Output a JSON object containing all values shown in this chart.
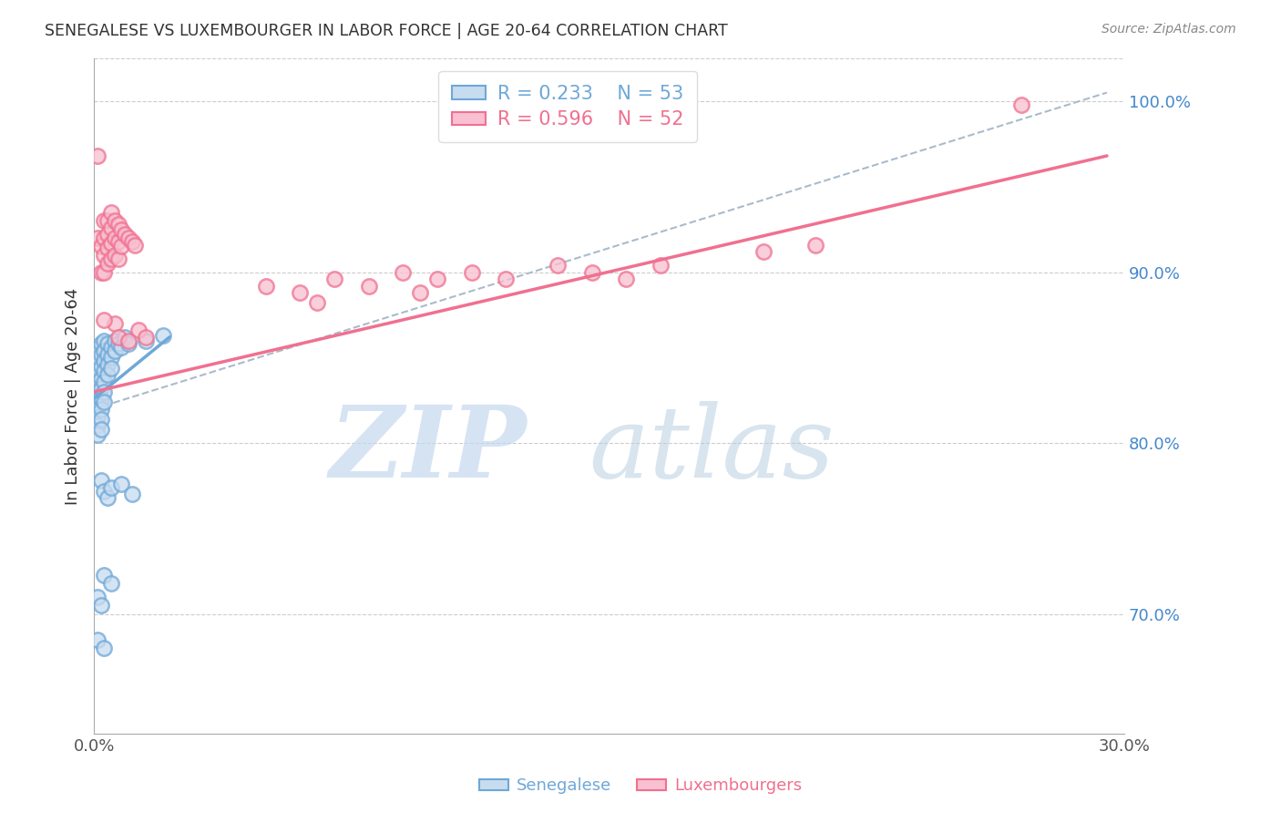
{
  "title": "SENEGALESE VS LUXEMBOURGER IN LABOR FORCE | AGE 20-64 CORRELATION CHART",
  "source": "Source: ZipAtlas.com",
  "ylabel": "In Labor Force | Age 20-64",
  "xlim": [
    0.0,
    0.3
  ],
  "ylim": [
    0.63,
    1.025
  ],
  "xtick_left_label": "0.0%",
  "xtick_right_label": "30.0%",
  "yticks_right": [
    0.7,
    0.8,
    0.9,
    1.0
  ],
  "yticklabels_right": [
    "70.0%",
    "80.0%",
    "90.0%",
    "100.0%"
  ],
  "grid_color": "#cccccc",
  "background_color": "#ffffff",
  "blue_color": "#6ea8d8",
  "pink_color": "#f07090",
  "blue_scatter": [
    [
      0.001,
      0.855
    ],
    [
      0.001,
      0.848
    ],
    [
      0.001,
      0.842
    ],
    [
      0.001,
      0.836
    ],
    [
      0.001,
      0.83
    ],
    [
      0.001,
      0.825
    ],
    [
      0.001,
      0.82
    ],
    [
      0.001,
      0.815
    ],
    [
      0.001,
      0.81
    ],
    [
      0.001,
      0.805
    ],
    [
      0.002,
      0.858
    ],
    [
      0.002,
      0.852
    ],
    [
      0.002,
      0.845
    ],
    [
      0.002,
      0.838
    ],
    [
      0.002,
      0.832
    ],
    [
      0.002,
      0.826
    ],
    [
      0.002,
      0.82
    ],
    [
      0.002,
      0.814
    ],
    [
      0.002,
      0.808
    ],
    [
      0.003,
      0.86
    ],
    [
      0.003,
      0.854
    ],
    [
      0.003,
      0.848
    ],
    [
      0.003,
      0.842
    ],
    [
      0.003,
      0.836
    ],
    [
      0.003,
      0.83
    ],
    [
      0.003,
      0.824
    ],
    [
      0.004,
      0.858
    ],
    [
      0.004,
      0.852
    ],
    [
      0.004,
      0.846
    ],
    [
      0.004,
      0.84
    ],
    [
      0.005,
      0.856
    ],
    [
      0.005,
      0.85
    ],
    [
      0.005,
      0.844
    ],
    [
      0.006,
      0.86
    ],
    [
      0.006,
      0.854
    ],
    [
      0.007,
      0.858
    ],
    [
      0.008,
      0.856
    ],
    [
      0.009,
      0.862
    ],
    [
      0.01,
      0.858
    ],
    [
      0.002,
      0.778
    ],
    [
      0.003,
      0.772
    ],
    [
      0.004,
      0.768
    ],
    [
      0.005,
      0.774
    ],
    [
      0.008,
      0.776
    ],
    [
      0.011,
      0.77
    ],
    [
      0.003,
      0.723
    ],
    [
      0.005,
      0.718
    ],
    [
      0.001,
      0.71
    ],
    [
      0.002,
      0.705
    ],
    [
      0.001,
      0.685
    ],
    [
      0.003,
      0.68
    ],
    [
      0.015,
      0.86
    ],
    [
      0.02,
      0.863
    ]
  ],
  "pink_scatter": [
    [
      0.001,
      0.92
    ],
    [
      0.002,
      0.915
    ],
    [
      0.002,
      0.9
    ],
    [
      0.003,
      0.93
    ],
    [
      0.003,
      0.92
    ],
    [
      0.003,
      0.91
    ],
    [
      0.003,
      0.9
    ],
    [
      0.004,
      0.93
    ],
    [
      0.004,
      0.922
    ],
    [
      0.004,
      0.914
    ],
    [
      0.004,
      0.905
    ],
    [
      0.005,
      0.935
    ],
    [
      0.005,
      0.926
    ],
    [
      0.005,
      0.917
    ],
    [
      0.005,
      0.908
    ],
    [
      0.006,
      0.93
    ],
    [
      0.006,
      0.92
    ],
    [
      0.006,
      0.91
    ],
    [
      0.007,
      0.928
    ],
    [
      0.007,
      0.918
    ],
    [
      0.007,
      0.908
    ],
    [
      0.008,
      0.925
    ],
    [
      0.008,
      0.915
    ],
    [
      0.009,
      0.922
    ],
    [
      0.01,
      0.92
    ],
    [
      0.011,
      0.918
    ],
    [
      0.012,
      0.916
    ],
    [
      0.001,
      0.968
    ],
    [
      0.006,
      0.87
    ],
    [
      0.007,
      0.862
    ],
    [
      0.013,
      0.866
    ],
    [
      0.015,
      0.862
    ],
    [
      0.003,
      0.872
    ],
    [
      0.01,
      0.86
    ],
    [
      0.05,
      0.892
    ],
    [
      0.06,
      0.888
    ],
    [
      0.065,
      0.882
    ],
    [
      0.07,
      0.896
    ],
    [
      0.08,
      0.892
    ],
    [
      0.09,
      0.9
    ],
    [
      0.095,
      0.888
    ],
    [
      0.1,
      0.896
    ],
    [
      0.11,
      0.9
    ],
    [
      0.12,
      0.896
    ],
    [
      0.135,
      0.904
    ],
    [
      0.145,
      0.9
    ],
    [
      0.155,
      0.896
    ],
    [
      0.165,
      0.904
    ],
    [
      0.195,
      0.912
    ],
    [
      0.21,
      0.916
    ],
    [
      0.27,
      0.998
    ]
  ],
  "blue_trend_x": [
    0.0,
    0.022
  ],
  "blue_trend_y": [
    0.826,
    0.862
  ],
  "pink_trend_x": [
    0.0,
    0.295
  ],
  "pink_trend_y": [
    0.83,
    0.968
  ],
  "dash_trend_x": [
    0.0,
    0.295
  ],
  "dash_trend_y": [
    0.82,
    1.005
  ],
  "dash_color": "#aabbcc"
}
